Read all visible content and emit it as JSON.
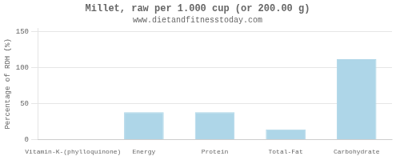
{
  "chart_data": {
    "type": "bar",
    "title": "Millet, raw per 1.000 cup (or 200.00 g)",
    "subtitle": "www.dietandfitnesstoday.com",
    "categories": [
      "Vitamin-K-(phylloquinone)",
      "Energy",
      "Protein",
      "Total-Fat",
      "Carbohydrate"
    ],
    "values": [
      0,
      38,
      38,
      14,
      112
    ],
    "color": "#aed6e8",
    "ylabel": "Percentage of RDH (%)",
    "ylim": [
      0,
      155
    ],
    "yticks": [
      0,
      50,
      100,
      150
    ],
    "grid": true
  }
}
